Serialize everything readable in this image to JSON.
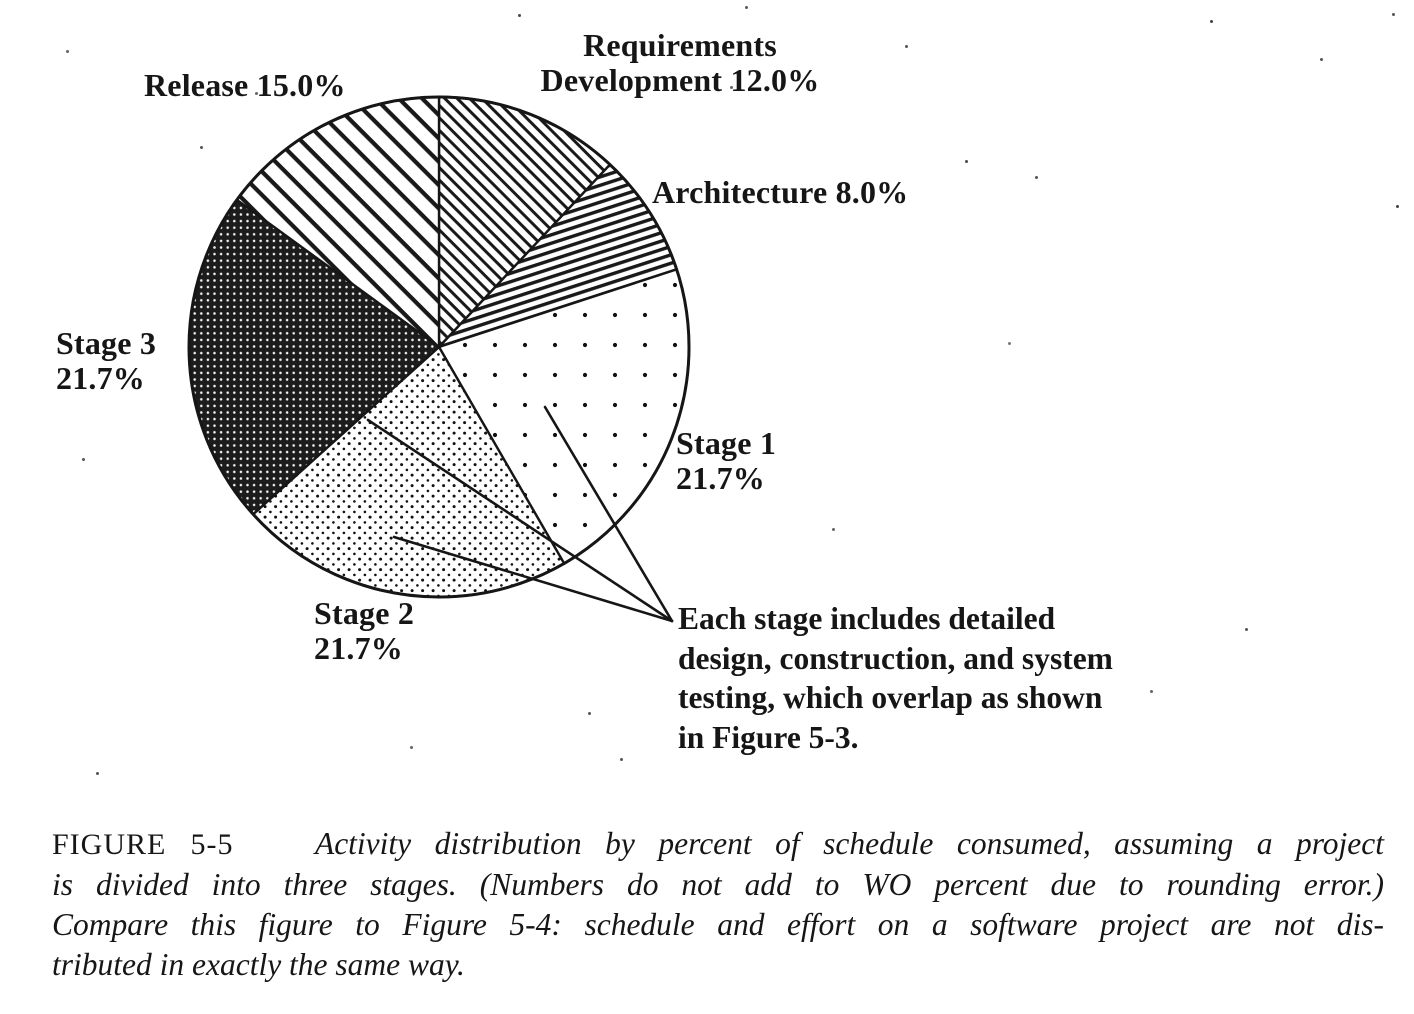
{
  "chart_data": {
    "type": "pie",
    "title": "Activity distribution by percent of schedule consumed",
    "values_unit": "percent",
    "start_angle_deg": 0,
    "direction": "clockwise",
    "legend_position": "labels-around-pie",
    "slices": [
      {
        "label": "Requirements Development",
        "value": 12.0,
        "pattern": "hatch-medium"
      },
      {
        "label": "Architecture",
        "value": 8.0,
        "pattern": "hatch-shallow"
      },
      {
        "label": "Stage 1",
        "value": 21.7,
        "pattern": "dots-sparse"
      },
      {
        "label": "Stage 2",
        "value": 21.7,
        "pattern": "dots-dense"
      },
      {
        "label": "Stage 3",
        "value": 21.7,
        "pattern": "weave"
      },
      {
        "label": "Release",
        "value": 15.0,
        "pattern": "hatch-wide"
      }
    ]
  },
  "figure": {
    "slice_labels": {
      "requirements": {
        "line1": "Requirements",
        "line2": "Development 12.0%"
      },
      "architecture": {
        "line1": "Architecture 8.0%"
      },
      "release": {
        "line1": "Release 15.0%"
      },
      "stage1": {
        "line1": "Stage 1",
        "line2": "21.7%"
      },
      "stage2": {
        "line1": "Stage 2",
        "line2": "21.7%"
      },
      "stage3": {
        "line1": "Stage 3",
        "line2": "21.7%"
      }
    },
    "annotation": {
      "lines": [
        "Each stage includes detailed",
        "design, construction, and system",
        "testing, which overlap as shown",
        "in Figure 5-3."
      ]
    }
  },
  "caption": {
    "label": "FIGURE 5-5",
    "line1": "Activity distribution by percent of schedule consumed, assuming a project",
    "line2": "is divided into three stages. (Numbers do not add to WO percent due to rounding error.)",
    "line3": "Compare this figure to Figure 5-4: schedule and effort on a software project are not dis-",
    "line4": "tributed in exactly the same way."
  },
  "colors": {
    "ink": "#161616",
    "paper": "#ffffff"
  }
}
